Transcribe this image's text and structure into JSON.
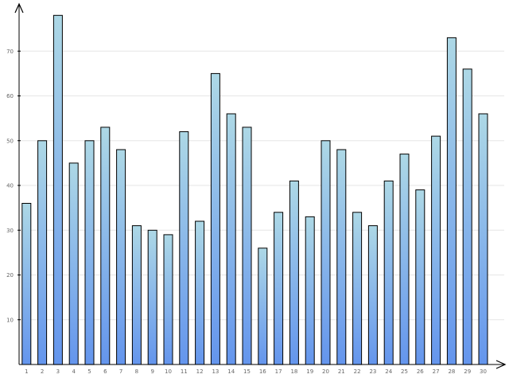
{
  "chart_data": {
    "type": "bar",
    "title": "",
    "xlabel": "",
    "ylabel": "",
    "categories": [
      "1",
      "2",
      "3",
      "4",
      "5",
      "6",
      "7",
      "8",
      "9",
      "10",
      "11",
      "12",
      "13",
      "14",
      "15",
      "16",
      "17",
      "18",
      "19",
      "20",
      "21",
      "22",
      "23",
      "24",
      "25",
      "26",
      "27",
      "28",
      "29",
      "30"
    ],
    "values": [
      36,
      50,
      78,
      45,
      50,
      53,
      48,
      31,
      30,
      29,
      52,
      32,
      65,
      56,
      53,
      26,
      34,
      41,
      33,
      50,
      48,
      34,
      31,
      41,
      47,
      39,
      51,
      73,
      66,
      56
    ],
    "ylim": [
      0,
      80
    ],
    "yticks": [
      10,
      20,
      30,
      40,
      50,
      60,
      70
    ],
    "grid": true,
    "legend": "none",
    "colors": {
      "bar_top": "#add8e6",
      "bar_bottom": "#6495ed",
      "bar_stroke": "#000000",
      "grid": "#e6e6e6",
      "tick_text": "#666666"
    }
  }
}
